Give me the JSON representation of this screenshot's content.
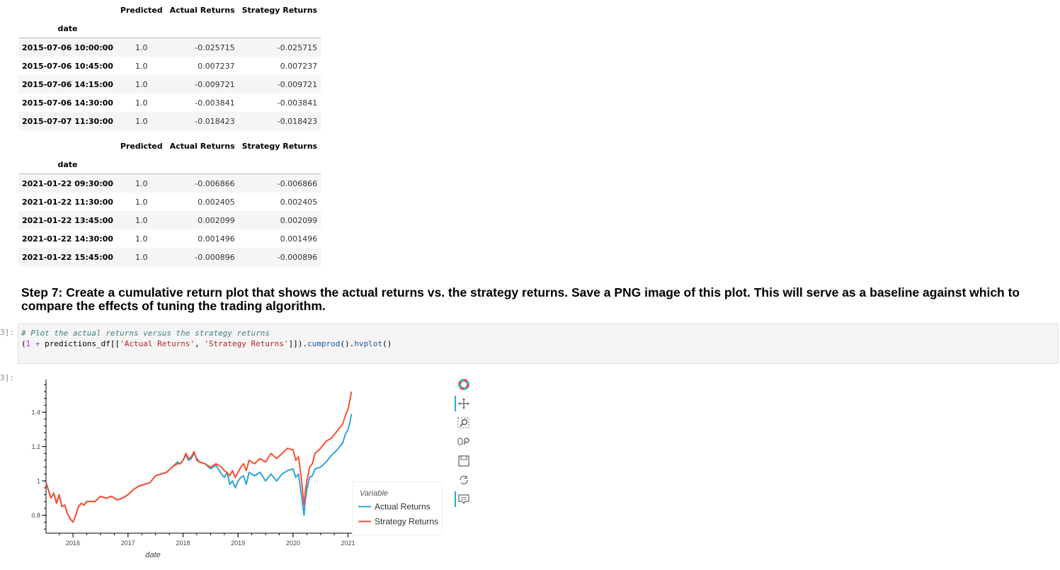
{
  "table_head": {
    "columns": [
      "Predicted",
      "Actual Returns",
      "Strategy Returns"
    ],
    "index_name": "date"
  },
  "table_tail": {
    "columns": [
      "Predicted",
      "Actual Returns",
      "Strategy Returns"
    ],
    "index_name": "date"
  },
  "rows_head": [
    {
      "date": "2015-07-06 10:00:00",
      "predicted": "1.0",
      "actual": "-0.025715",
      "strategy": "-0.025715"
    },
    {
      "date": "2015-07-06 10:45:00",
      "predicted": "1.0",
      "actual": "0.007237",
      "strategy": "0.007237"
    },
    {
      "date": "2015-07-06 14:15:00",
      "predicted": "1.0",
      "actual": "-0.009721",
      "strategy": "-0.009721"
    },
    {
      "date": "2015-07-06 14:30:00",
      "predicted": "1.0",
      "actual": "-0.003841",
      "strategy": "-0.003841"
    },
    {
      "date": "2015-07-07 11:30:00",
      "predicted": "1.0",
      "actual": "-0.018423",
      "strategy": "-0.018423"
    }
  ],
  "rows_tail": [
    {
      "date": "2021-01-22 09:30:00",
      "predicted": "1.0",
      "actual": "-0.006866",
      "strategy": "-0.006866"
    },
    {
      "date": "2021-01-22 11:30:00",
      "predicted": "1.0",
      "actual": "0.002405",
      "strategy": "0.002405"
    },
    {
      "date": "2021-01-22 13:45:00",
      "predicted": "1.0",
      "actual": "0.002099",
      "strategy": "0.002099"
    },
    {
      "date": "2021-01-22 14:30:00",
      "predicted": "1.0",
      "actual": "0.001496",
      "strategy": "0.001496"
    },
    {
      "date": "2021-01-22 15:45:00",
      "predicted": "1.0",
      "actual": "-0.000896",
      "strategy": "-0.000896"
    }
  ],
  "markdown": {
    "heading": "Step 7: Create a cumulative return plot that shows the actual returns vs. the strategy returns. Save a PNG image of this plot. This will serve as a baseline against which to compare the effects of tuning the trading algorithm."
  },
  "code_cell": {
    "prompt": "3]:",
    "comment": "# Plot the actual returns versus the strategy returns",
    "code_parts": {
      "open": "(",
      "one": "1",
      "plus": " + ",
      "df": "predictions_df[[",
      "s1": "'Actual Returns'",
      "comma": ", ",
      "s2": "'Strategy Returns'",
      "close": "]]).",
      "cumprod": "cumprod",
      "mid": "().",
      "hvplot": "hvplot",
      "end": "()"
    }
  },
  "output_cell": {
    "prompt": "3]:"
  },
  "toolbar": {
    "tools": [
      "bokeh-logo-icon",
      "pan-icon",
      "box-zoom-icon",
      "wheel-zoom-icon",
      "save-icon",
      "reset-icon",
      "hover-icon"
    ]
  },
  "chart_data": {
    "type": "line",
    "title": "",
    "xlabel": "date",
    "ylabel": "",
    "x_range": [
      2015.51,
      2021.07
    ],
    "ylim": [
      0.7,
      1.59
    ],
    "x_ticks": [
      "2016",
      "2017",
      "2018",
      "2019",
      "2020",
      "2021"
    ],
    "x_tick_values": [
      2016,
      2017,
      2018,
      2019,
      2020,
      2021
    ],
    "y_ticks": [
      "0.8",
      "1",
      "1.2",
      "1.4"
    ],
    "y_tick_values": [
      0.8,
      1.0,
      1.2,
      1.4
    ],
    "grid": false,
    "legend": {
      "title": "Variable",
      "placement": "right"
    },
    "series": [
      {
        "name": "Actual Returns",
        "color": "#30a2da",
        "x": [
          2015.51,
          2015.55,
          2015.6,
          2015.65,
          2015.7,
          2015.75,
          2015.8,
          2015.85,
          2015.9,
          2015.95,
          2016.0,
          2016.05,
          2016.1,
          2016.15,
          2016.2,
          2016.25,
          2016.3,
          2016.4,
          2016.5,
          2016.6,
          2016.7,
          2016.8,
          2016.9,
          2017.0,
          2017.1,
          2017.2,
          2017.3,
          2017.4,
          2017.5,
          2017.6,
          2017.7,
          2017.8,
          2017.9,
          2017.95,
          2018.0,
          2018.05,
          2018.1,
          2018.15,
          2018.2,
          2018.25,
          2018.3,
          2018.4,
          2018.5,
          2018.6,
          2018.7,
          2018.75,
          2018.8,
          2018.85,
          2018.9,
          2018.95,
          2019.0,
          2019.05,
          2019.1,
          2019.15,
          2019.2,
          2019.3,
          2019.4,
          2019.5,
          2019.6,
          2019.7,
          2019.8,
          2019.9,
          2020.0,
          2020.05,
          2020.1,
          2020.15,
          2020.18,
          2020.2,
          2020.22,
          2020.25,
          2020.3,
          2020.35,
          2020.4,
          2020.5,
          2020.6,
          2020.7,
          2020.8,
          2020.9,
          2020.95,
          2021.0,
          2021.04,
          2021.06
        ],
        "values": [
          0.99,
          0.95,
          0.9,
          0.93,
          0.87,
          0.92,
          0.85,
          0.86,
          0.81,
          0.78,
          0.76,
          0.8,
          0.85,
          0.87,
          0.86,
          0.88,
          0.88,
          0.88,
          0.91,
          0.9,
          0.91,
          0.89,
          0.9,
          0.92,
          0.95,
          0.97,
          0.98,
          0.99,
          1.03,
          1.04,
          1.05,
          1.08,
          1.11,
          1.1,
          1.12,
          1.15,
          1.12,
          1.13,
          1.16,
          1.13,
          1.11,
          1.1,
          1.07,
          1.09,
          1.04,
          1.02,
          1.05,
          0.98,
          1.0,
          0.96,
          1.0,
          1.02,
          1.03,
          0.98,
          1.05,
          1.03,
          1.05,
          1.0,
          1.04,
          1.0,
          1.04,
          1.06,
          1.07,
          1.02,
          1.04,
          0.92,
          0.85,
          0.8,
          0.88,
          0.95,
          1.02,
          1.03,
          1.07,
          1.08,
          1.11,
          1.15,
          1.18,
          1.22,
          1.27,
          1.3,
          1.35,
          1.39
        ]
      },
      {
        "name": "Strategy Returns",
        "color": "#fc4f30",
        "x": [
          2015.51,
          2015.55,
          2015.6,
          2015.65,
          2015.7,
          2015.75,
          2015.8,
          2015.85,
          2015.9,
          2015.95,
          2016.0,
          2016.05,
          2016.1,
          2016.15,
          2016.2,
          2016.25,
          2016.3,
          2016.4,
          2016.5,
          2016.6,
          2016.7,
          2016.8,
          2016.9,
          2017.0,
          2017.1,
          2017.2,
          2017.3,
          2017.4,
          2017.5,
          2017.6,
          2017.7,
          2017.8,
          2017.9,
          2017.95,
          2018.0,
          2018.05,
          2018.1,
          2018.15,
          2018.2,
          2018.25,
          2018.3,
          2018.4,
          2018.5,
          2018.6,
          2018.7,
          2018.75,
          2018.8,
          2018.85,
          2018.9,
          2018.95,
          2019.0,
          2019.05,
          2019.1,
          2019.15,
          2019.2,
          2019.3,
          2019.4,
          2019.5,
          2019.6,
          2019.7,
          2019.8,
          2019.9,
          2020.0,
          2020.05,
          2020.1,
          2020.15,
          2020.18,
          2020.2,
          2020.22,
          2020.25,
          2020.3,
          2020.35,
          2020.4,
          2020.5,
          2020.6,
          2020.7,
          2020.8,
          2020.9,
          2020.95,
          2021.0,
          2021.04,
          2021.06
        ],
        "values": [
          0.99,
          0.95,
          0.9,
          0.93,
          0.87,
          0.92,
          0.85,
          0.86,
          0.81,
          0.78,
          0.76,
          0.8,
          0.85,
          0.87,
          0.86,
          0.88,
          0.88,
          0.88,
          0.91,
          0.9,
          0.91,
          0.89,
          0.9,
          0.92,
          0.95,
          0.97,
          0.98,
          0.99,
          1.03,
          1.04,
          1.05,
          1.08,
          1.1,
          1.1,
          1.12,
          1.16,
          1.13,
          1.14,
          1.17,
          1.12,
          1.11,
          1.1,
          1.08,
          1.1,
          1.08,
          1.06,
          1.05,
          1.03,
          1.06,
          1.02,
          1.05,
          1.08,
          1.1,
          1.06,
          1.12,
          1.1,
          1.13,
          1.11,
          1.16,
          1.13,
          1.16,
          1.19,
          1.18,
          1.12,
          1.14,
          1.02,
          0.92,
          0.86,
          0.93,
          1.0,
          1.08,
          1.1,
          1.16,
          1.19,
          1.23,
          1.25,
          1.29,
          1.33,
          1.38,
          1.42,
          1.48,
          1.52
        ]
      }
    ]
  }
}
